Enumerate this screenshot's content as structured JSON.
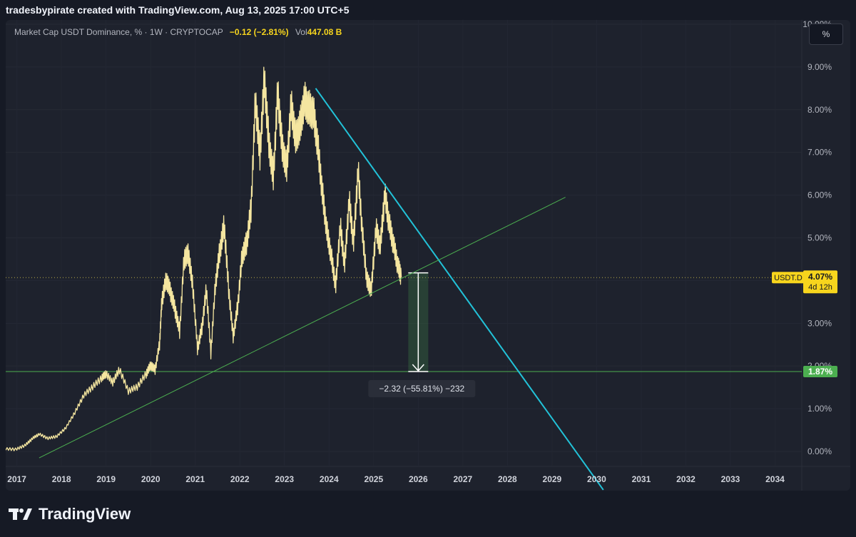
{
  "header": {
    "title": "tradesbypirate created with TradingView.com, Aug 13, 2025 17:00 UTC+5"
  },
  "legend": {
    "symbol": "Market Cap USDT Dominance, % · 1W · CRYPTOCAP",
    "change": "−0.12 (−2.81%)",
    "vol_label": "Vol",
    "vol_value": "447.08 B"
  },
  "unit_button": "%",
  "brand": {
    "name": "TradingView",
    "icon": "tradingview-logo-icon"
  },
  "colors": {
    "background": "#1e222d",
    "price": "#f5e6a0",
    "resistance": "#22c2d8",
    "support": "#4caf50",
    "label_yellow": "#f7d51d",
    "label_green": "#4caf50"
  },
  "chart_data": {
    "type": "line",
    "xlim": [
      2016.75,
      2034.6
    ],
    "ylim": [
      -0.35,
      10.1
    ],
    "x_ticks": [
      "2017",
      "2018",
      "2019",
      "2020",
      "2021",
      "2022",
      "2023",
      "2024",
      "2025",
      "2026",
      "2027",
      "2028",
      "2029",
      "2030",
      "2031",
      "2032",
      "2033",
      "2034"
    ],
    "y_ticks": [
      "10.00%",
      "9.00%",
      "8.00%",
      "7.00%",
      "6.00%",
      "5.00%",
      "4.00%",
      "3.00%",
      "2.00%",
      "1.00%",
      "0.00%"
    ],
    "series": [
      {
        "x": [
          2016.75,
          2017.0,
          2017.2,
          2017.35,
          2017.5,
          2017.7,
          2017.9,
          2018.1,
          2018.3,
          2018.5,
          2018.7,
          2018.9,
          2019.0,
          2019.15,
          2019.3,
          2019.5,
          2019.7,
          2019.9,
          2020.0,
          2020.1,
          2020.2,
          2020.25,
          2020.35,
          2020.45,
          2020.55,
          2020.65,
          2020.75,
          2020.85,
          2020.95,
          2021.05,
          2021.15,
          2021.25,
          2021.35,
          2021.45,
          2021.55,
          2021.65,
          2021.75,
          2021.85,
          2021.95,
          2022.05,
          2022.15,
          2022.25,
          2022.35,
          2022.45,
          2022.55,
          2022.65,
          2022.75,
          2022.85,
          2022.95,
          2023.05,
          2023.15,
          2023.25,
          2023.35,
          2023.45,
          2023.55,
          2023.65,
          2023.75,
          2023.85,
          2023.95,
          2024.05,
          2024.15,
          2024.25,
          2024.35,
          2024.45,
          2024.55,
          2024.65,
          2024.75,
          2024.85,
          2024.95,
          2025.05,
          2025.15,
          2025.25,
          2025.35,
          2025.45,
          2025.55,
          2025.62
        ],
        "values": [
          0.05,
          0.05,
          0.15,
          0.3,
          0.4,
          0.3,
          0.35,
          0.55,
          0.9,
          1.3,
          1.5,
          1.7,
          1.8,
          1.6,
          1.9,
          1.4,
          1.5,
          1.8,
          2.0,
          1.9,
          2.5,
          3.5,
          4.0,
          3.7,
          3.3,
          2.8,
          4.5,
          4.6,
          3.8,
          2.4,
          2.9,
          3.8,
          2.3,
          3.9,
          4.7,
          5.3,
          3.8,
          2.7,
          3.4,
          4.6,
          4.9,
          5.7,
          8.3,
          7.0,
          8.8,
          7.3,
          6.5,
          8.5,
          7.2,
          6.7,
          8.2,
          7.4,
          7.7,
          8.3,
          8.1,
          8.0,
          7.2,
          6.1,
          5.2,
          4.6,
          3.9,
          5.3,
          4.4,
          5.9,
          4.9,
          6.6,
          5.1,
          4.0,
          3.8,
          5.2,
          4.8,
          6.0,
          5.3,
          4.8,
          4.3,
          4.07
        ]
      }
    ],
    "trendlines": [
      {
        "name": "",
        "x": [
          2023.7,
          2030.15
        ],
        "y": [
          8.5,
          -0.9
        ]
      },
      {
        "name": "",
        "x": [
          2017.5,
          2029.3
        ],
        "y": [
          -0.15,
          5.95
        ]
      }
    ],
    "horizontal_lines": [
      {
        "label": "1.87%",
        "y": 1.87
      },
      {
        "label": "",
        "y": 4.07
      }
    ],
    "measurement": {
      "x": 2026.0,
      "from": 4.18,
      "to": 1.87,
      "label": "−2.32 (−55.81%) −232"
    },
    "price_labels": {
      "symbol": "USDT.D",
      "last_value": "4.07%",
      "countdown": "4d 12h"
    }
  }
}
